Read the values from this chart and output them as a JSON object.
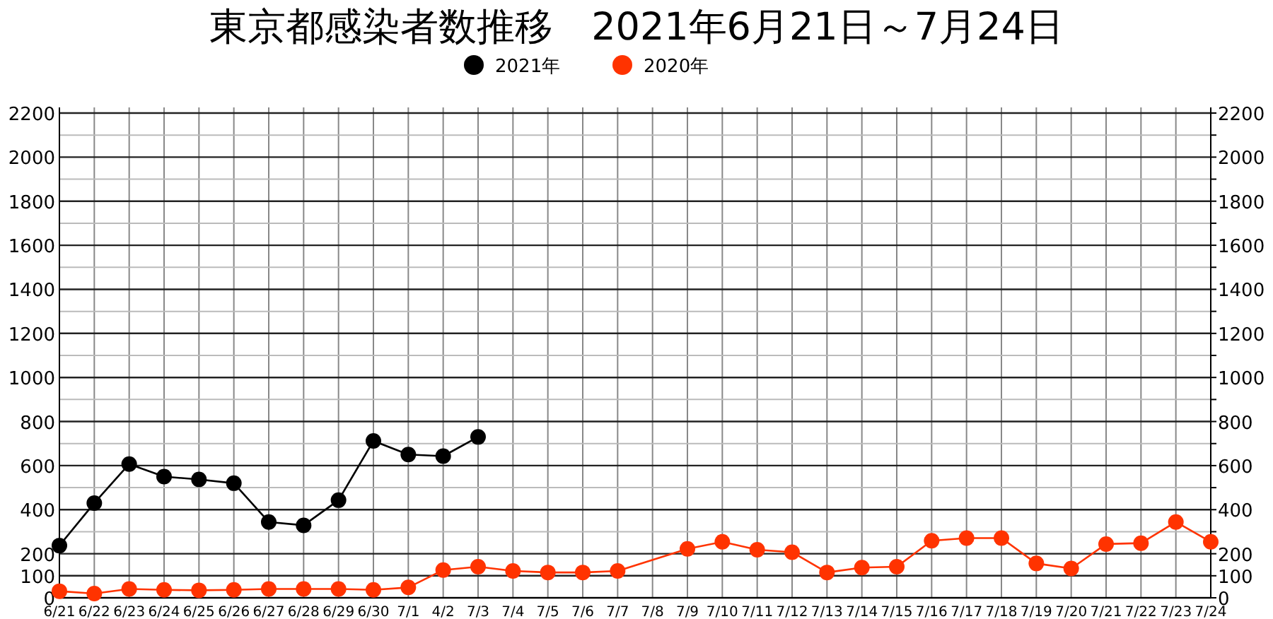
{
  "chart_data": {
    "type": "line",
    "title": "東京都感染者数推移　2021年6月21日～7月24日",
    "categories": [
      "6/21",
      "6/22",
      "6/23",
      "6/24",
      "6/25",
      "6/26",
      "6/27",
      "6/28",
      "6/29",
      "6/30",
      "7/1",
      "4/2",
      "7/3",
      "7/4",
      "7/5",
      "7/6",
      "7/7",
      "7/8",
      "7/9",
      "7/10",
      "7/11",
      "7/12",
      "7/13",
      "7/14",
      "7/15",
      "7/16",
      "7/17",
      "7/18",
      "7/19",
      "7/20",
      "7/21",
      "7/22",
      "7/23",
      "7/24"
    ],
    "series": [
      {
        "name": "2021年",
        "color": "#000000",
        "values": [
          237,
          430,
          607,
          550,
          537,
          520,
          344,
          329,
          443,
          712,
          650,
          643,
          730,
          null,
          null,
          null,
          null,
          null,
          null,
          null,
          null,
          null,
          null,
          null,
          null,
          null,
          null,
          null,
          null,
          null,
          null,
          null,
          null,
          null
        ]
      },
      {
        "name": "2020年",
        "color": "#ff3300",
        "values": [
          30,
          19,
          40,
          36,
          34,
          36,
          40,
          40,
          40,
          36,
          47,
          126,
          141,
          122,
          115,
          115,
          122,
          null,
          222,
          254,
          218,
          207,
          115,
          137,
          141,
          259,
          271,
          271,
          156,
          133,
          244,
          248,
          344,
          254
        ]
      }
    ],
    "ylim": [
      0,
      2200
    ],
    "yticks": [
      0,
      100,
      200,
      {
        "value": 300,
        "label": null
      },
      400,
      {
        "value": 500,
        "label": null
      },
      600,
      {
        "value": 700,
        "label": null
      },
      800,
      {
        "value": 900,
        "label": null
      },
      1000,
      {
        "value": 1100,
        "label": null
      },
      1200,
      {
        "value": 1300,
        "label": null
      },
      1400,
      {
        "value": 1500,
        "label": null
      },
      1600,
      {
        "value": 1700,
        "label": null
      },
      1800,
      {
        "value": 1900,
        "label": null
      },
      2000,
      {
        "value": 2100,
        "label": null
      },
      2200
    ],
    "y2lim": [
      0,
      2200
    ],
    "y2ticks": [
      0,
      100,
      200,
      {
        "value": 300,
        "label": null
      },
      400,
      {
        "value": 500,
        "label": null
      },
      600,
      {
        "value": 700,
        "label": null
      },
      800,
      {
        "value": 900,
        "label": null
      },
      1000,
      {
        "value": 1100,
        "label": null
      },
      1200,
      {
        "value": 1300,
        "label": null
      },
      1400,
      {
        "value": 1500,
        "label": null
      },
      1600,
      {
        "value": 1700,
        "label": null
      },
      1800,
      {
        "value": 1900,
        "label": null
      },
      2000,
      {
        "value": 2100,
        "label": null
      },
      2200
    ],
    "grid": true,
    "legend": "top",
    "marker": "circle",
    "line_style": "solid"
  }
}
